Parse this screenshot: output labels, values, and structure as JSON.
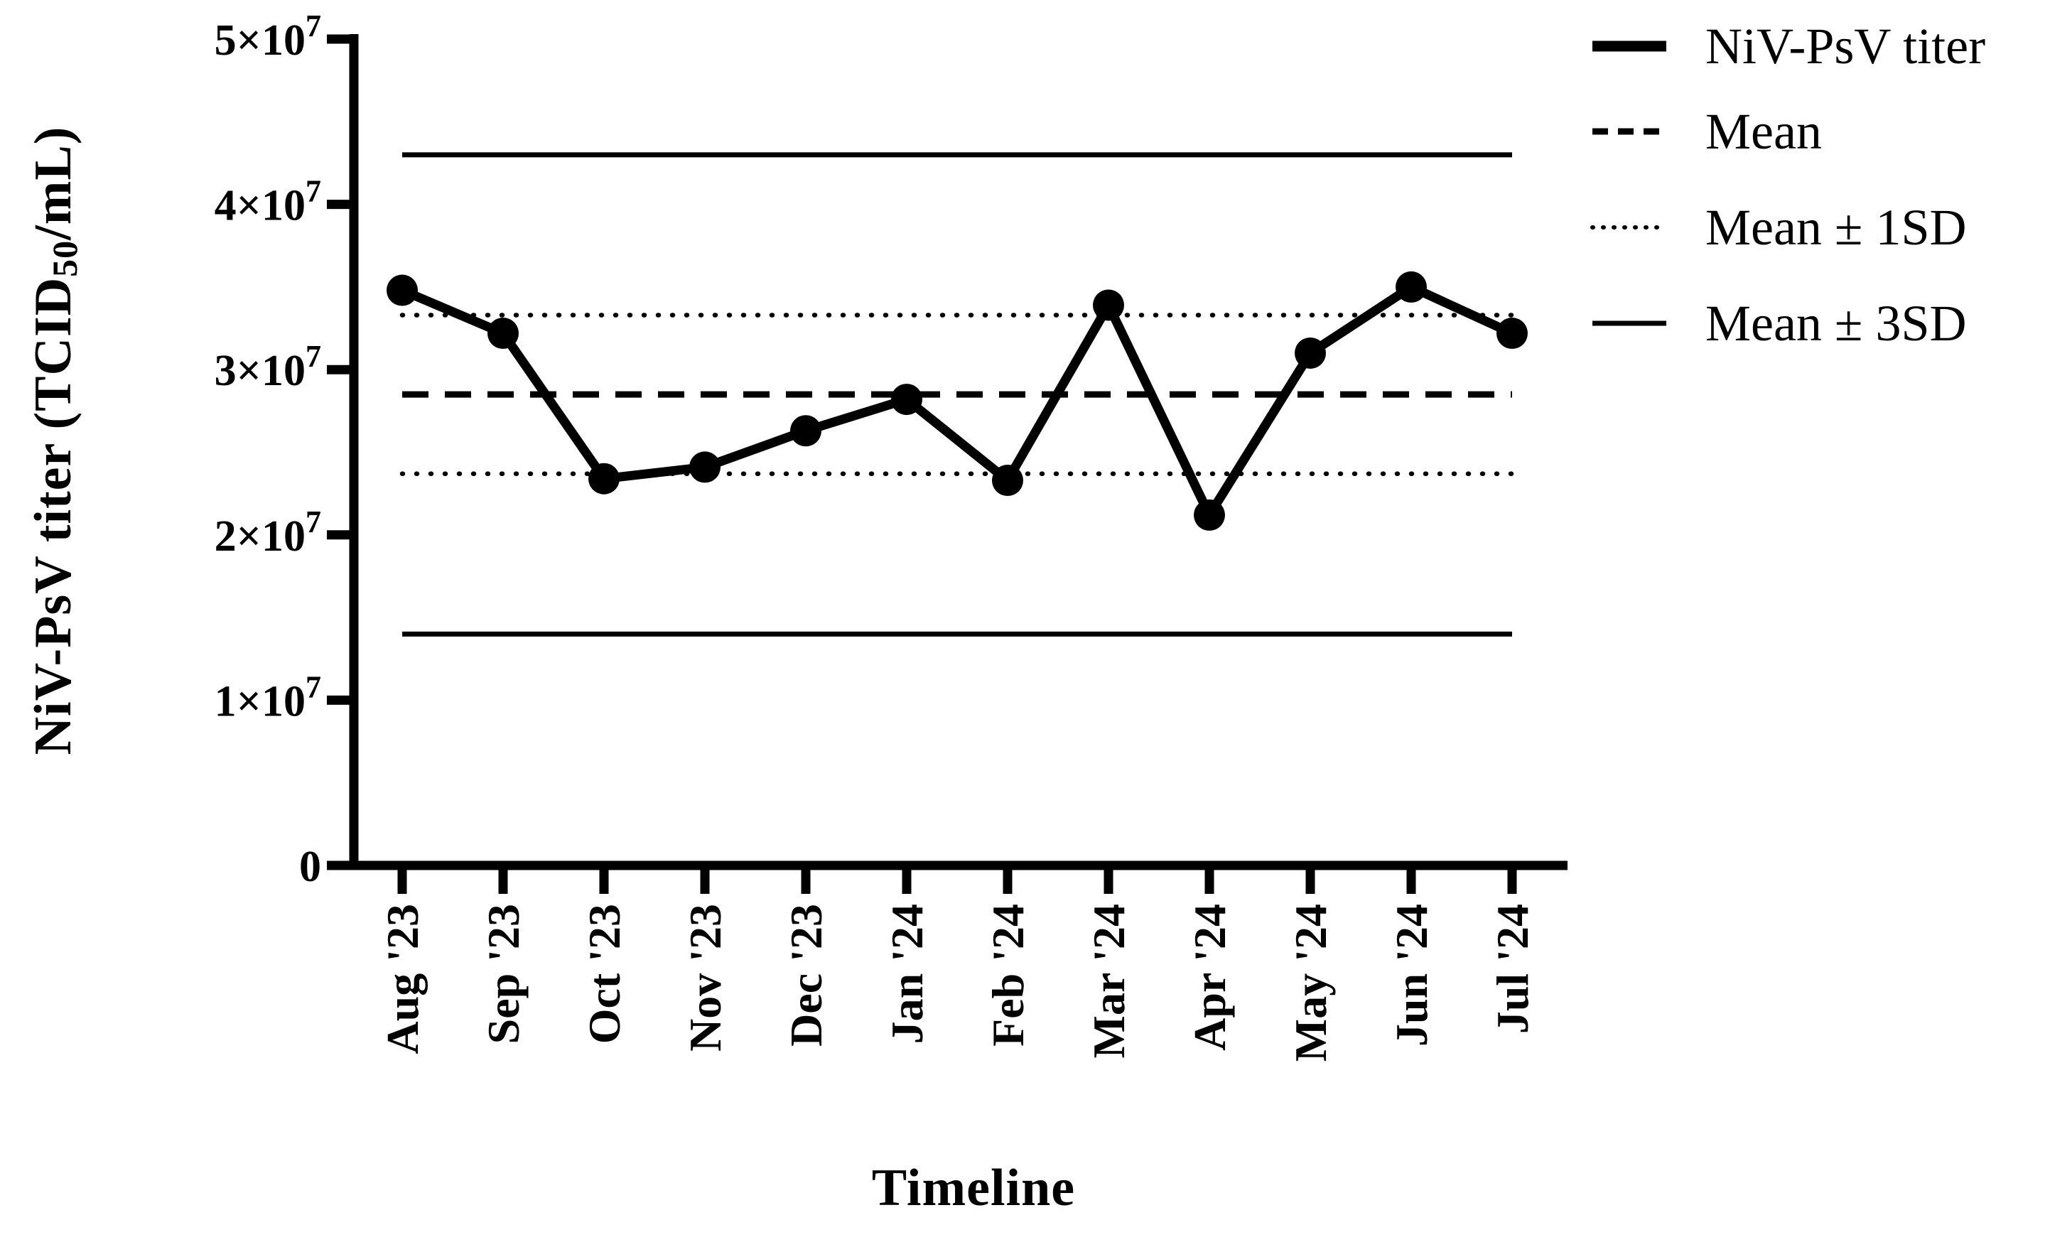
{
  "figure": {
    "background": "#ffffff",
    "ink": "#000000"
  },
  "chart_data": {
    "type": "line",
    "title": "",
    "xlabel": "Timeline",
    "ylabel": {
      "prefix": "NiV-PsV titer (TCID",
      "sub": "50",
      "suffix": "/mL)"
    },
    "categories": [
      "Aug '23",
      "Sep '23",
      "Oct '23",
      "Nov '23",
      "Dec '23",
      "Jan '24",
      "Feb '24",
      "Mar '24",
      "Apr '24",
      "May '24",
      "Jun '24",
      "Jul '24"
    ],
    "series": [
      {
        "name": "NiV-PsV titer",
        "style": "solid-thick",
        "marker": "circle",
        "values": [
          34800000,
          32200000,
          23400000,
          24100000,
          26300000,
          28200000,
          23300000,
          33900000,
          21200000,
          31000000,
          35000000,
          32200000
        ]
      }
    ],
    "reference_lines": [
      {
        "name": "Mean plus 3SD",
        "value": 43000000,
        "style": "solid-thin"
      },
      {
        "name": "Mean plus 1SD",
        "value": 33300000,
        "style": "dotted"
      },
      {
        "name": "Mean",
        "value": 28500000,
        "style": "dashed"
      },
      {
        "name": "Mean minus 1SD",
        "value": 23700000,
        "style": "dotted"
      },
      {
        "name": "Mean minus 3SD",
        "value": 14000000,
        "style": "solid-thin"
      }
    ],
    "ylim": [
      0,
      50000000
    ],
    "yticks": [
      {
        "value": 0,
        "label": "0",
        "sup": ""
      },
      {
        "value": 10000000,
        "label": "1×10",
        "sup": "7"
      },
      {
        "value": 20000000,
        "label": "2×10",
        "sup": "7"
      },
      {
        "value": 30000000,
        "label": "3×10",
        "sup": "7"
      },
      {
        "value": 40000000,
        "label": "4×10",
        "sup": "7"
      },
      {
        "value": 50000000,
        "label": "5×10",
        "sup": "7"
      }
    ],
    "legend": [
      {
        "label": "NiV-PsV titer",
        "style": "solid-thick"
      },
      {
        "label": "Mean",
        "style": "dashed"
      },
      {
        "label": "Mean ± 1SD",
        "style": "dotted"
      },
      {
        "label": "Mean ± 3SD",
        "style": "solid-thin"
      }
    ],
    "grid": false,
    "legend_position": "top-right"
  }
}
